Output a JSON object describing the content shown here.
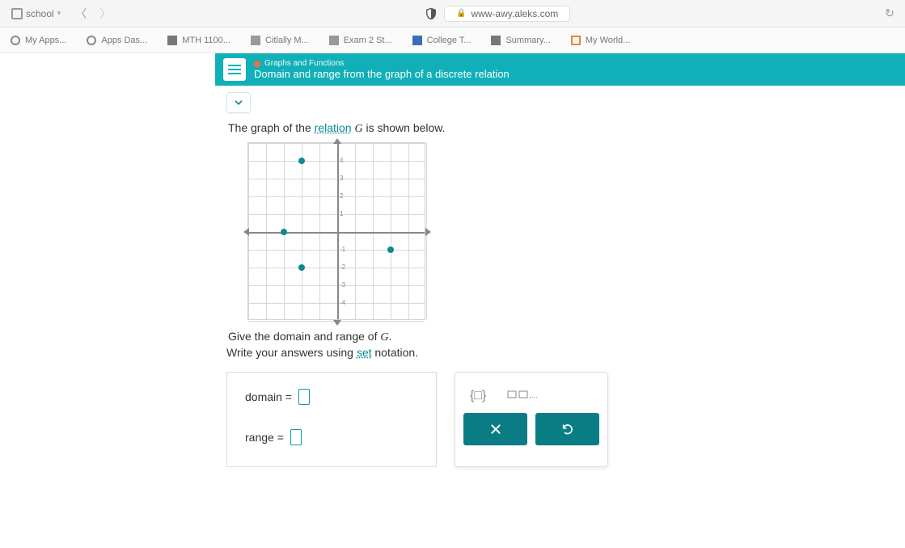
{
  "browser": {
    "tab_label": "school",
    "url": "www-awy.aleks.com",
    "reload_icon": "↻"
  },
  "bookmarks": {
    "items": [
      {
        "label": "My Apps...",
        "icon": "circle"
      },
      {
        "label": "Apps Das...",
        "icon": "circle"
      },
      {
        "label": "MTH 1100...",
        "icon": "sq"
      },
      {
        "label": "Citlally M...",
        "icon": "sq-grey"
      },
      {
        "label": "Exam 2 St...",
        "icon": "sq-grey"
      },
      {
        "label": "College T...",
        "icon": "sq-blue"
      },
      {
        "label": "Summary...",
        "icon": "sq"
      },
      {
        "label": "My World...",
        "icon": "sq-orange"
      }
    ]
  },
  "header": {
    "breadcrumb": "Graphs and Functions",
    "title": "Domain and range from the graph of a discrete relation"
  },
  "prompt": {
    "line1_a": "The graph of the ",
    "line1_rel": "relation",
    "line1_b": " ",
    "line1_G": "G",
    "line1_c": " is shown below.",
    "line2_a": "Give the domain and range of ",
    "line2_G": "G",
    "line2_b": ".",
    "line3_a": "Write your answers using ",
    "line3_set": "set",
    "line3_b": " notation."
  },
  "answer": {
    "domain_label": "domain =",
    "range_label": "range ="
  },
  "tools": {
    "braces_hint": "{ }",
    "list_hint": "▭,▭,..."
  },
  "chart": {
    "type": "scatter",
    "xlim": [
      -5,
      5
    ],
    "ylim": [
      -5,
      5
    ],
    "tick_step": 1,
    "grid_color": "#d8d8d8",
    "axis_color": "#888888",
    "point_color": "#0a8a92",
    "point_radius": 4,
    "background_color": "#ffffff",
    "points": [
      {
        "x": -2,
        "y": 4
      },
      {
        "x": -3,
        "y": 0
      },
      {
        "x": -2,
        "y": -2
      },
      {
        "x": 3,
        "y": -1
      }
    ]
  },
  "colors": {
    "teal": "#11b0b8",
    "teal_dark": "#0a7d84",
    "accent": "#0a8a92"
  }
}
